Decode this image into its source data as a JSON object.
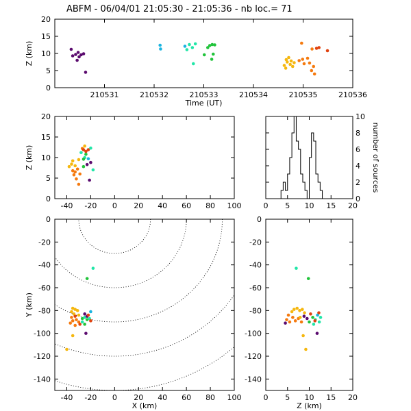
{
  "title": "ABFM - 06/04/01 21:05:30 - 21:05:36 - nb loc.=      71",
  "colors": {
    "purple": "#5a0a6e",
    "cyan": "#1ab4e0",
    "teal": "#22e6a8",
    "green": "#22c43c",
    "yellow": "#f5b70f",
    "orange": "#f57a0f",
    "red": "#e0420f"
  },
  "chart_data": [
    {
      "type": "scatter",
      "panel": "time-height",
      "xlabel": "Time (UT)",
      "ylabel": "Z (km)",
      "xlim": [
        210530,
        210536
      ],
      "ylim": [
        0,
        20
      ],
      "xticks": [
        210531,
        210532,
        210533,
        210534,
        210535,
        210536
      ],
      "yticks": [
        0,
        5,
        10,
        15,
        20
      ],
      "points": [
        {
          "x": 210530.33,
          "y": 11.2,
          "c": "purple"
        },
        {
          "x": 210530.36,
          "y": 9.3,
          "c": "purple"
        },
        {
          "x": 210530.42,
          "y": 9.7,
          "c": "purple"
        },
        {
          "x": 210530.47,
          "y": 10.3,
          "c": "purple"
        },
        {
          "x": 210530.49,
          "y": 9.0,
          "c": "purple"
        },
        {
          "x": 210530.53,
          "y": 9.6,
          "c": "purple"
        },
        {
          "x": 210530.58,
          "y": 9.9,
          "c": "purple"
        },
        {
          "x": 210530.62,
          "y": 4.5,
          "c": "purple"
        },
        {
          "x": 210530.45,
          "y": 8.0,
          "c": "purple"
        },
        {
          "x": 210532.12,
          "y": 12.4,
          "c": "cyan"
        },
        {
          "x": 210532.13,
          "y": 11.3,
          "c": "cyan"
        },
        {
          "x": 210532.62,
          "y": 12.1,
          "c": "cyan"
        },
        {
          "x": 210532.66,
          "y": 11.1,
          "c": "teal"
        },
        {
          "x": 210532.71,
          "y": 12.6,
          "c": "teal"
        },
        {
          "x": 210532.77,
          "y": 11.7,
          "c": "teal"
        },
        {
          "x": 210532.83,
          "y": 12.8,
          "c": "teal"
        },
        {
          "x": 210532.79,
          "y": 7.0,
          "c": "teal"
        },
        {
          "x": 210533.08,
          "y": 11.7,
          "c": "green"
        },
        {
          "x": 210533.12,
          "y": 12.3,
          "c": "green"
        },
        {
          "x": 210533.17,
          "y": 12.6,
          "c": "green"
        },
        {
          "x": 210533.22,
          "y": 12.5,
          "c": "green"
        },
        {
          "x": 210533.01,
          "y": 9.6,
          "c": "green"
        },
        {
          "x": 210533.16,
          "y": 8.3,
          "c": "green"
        },
        {
          "x": 210533.19,
          "y": 9.8,
          "c": "green"
        },
        {
          "x": 210534.62,
          "y": 6.5,
          "c": "yellow"
        },
        {
          "x": 210534.65,
          "y": 5.7,
          "c": "yellow"
        },
        {
          "x": 210534.68,
          "y": 7.5,
          "c": "yellow"
        },
        {
          "x": 210534.71,
          "y": 8.8,
          "c": "yellow"
        },
        {
          "x": 210534.74,
          "y": 6.8,
          "c": "yellow"
        },
        {
          "x": 210534.76,
          "y": 7.8,
          "c": "yellow"
        },
        {
          "x": 210534.79,
          "y": 6.2,
          "c": "yellow"
        },
        {
          "x": 210534.66,
          "y": 8.2,
          "c": "yellow"
        },
        {
          "x": 210534.82,
          "y": 7.3,
          "c": "yellow"
        },
        {
          "x": 210534.92,
          "y": 7.9,
          "c": "orange"
        },
        {
          "x": 210534.97,
          "y": 13.0,
          "c": "orange"
        },
        {
          "x": 210534.99,
          "y": 8.3,
          "c": "orange"
        },
        {
          "x": 210535.02,
          "y": 7.0,
          "c": "orange"
        },
        {
          "x": 210535.09,
          "y": 8.6,
          "c": "orange"
        },
        {
          "x": 210535.13,
          "y": 7.2,
          "c": "orange"
        },
        {
          "x": 210535.17,
          "y": 5.0,
          "c": "orange"
        },
        {
          "x": 210535.21,
          "y": 6.2,
          "c": "orange"
        },
        {
          "x": 210535.23,
          "y": 4.0,
          "c": "orange"
        },
        {
          "x": 210535.18,
          "y": 11.3,
          "c": "orange"
        },
        {
          "x": 210535.27,
          "y": 11.5,
          "c": "red"
        },
        {
          "x": 210535.32,
          "y": 11.7,
          "c": "red"
        },
        {
          "x": 210535.49,
          "y": 10.8,
          "c": "red"
        }
      ]
    },
    {
      "type": "scatter",
      "panel": "x-height",
      "xlabel": "",
      "ylabel": "Z (km)",
      "xlim": [
        -50,
        100
      ],
      "ylim": [
        0,
        20
      ],
      "xticks": [
        -40,
        -20,
        0,
        20,
        40,
        60,
        80,
        100
      ],
      "yticks": [
        0,
        5,
        10,
        15,
        20
      ],
      "points": [
        {
          "x": -35,
          "y": 9.2,
          "c": "yellow"
        },
        {
          "x": -36,
          "y": 8.4,
          "c": "yellow"
        },
        {
          "x": -33,
          "y": 8.0,
          "c": "yellow"
        },
        {
          "x": -30,
          "y": 9.5,
          "c": "yellow"
        },
        {
          "x": -38,
          "y": 7.8,
          "c": "yellow"
        },
        {
          "x": -33,
          "y": 6.5,
          "c": "orange"
        },
        {
          "x": -31,
          "y": 7.2,
          "c": "orange"
        },
        {
          "x": -34,
          "y": 5.8,
          "c": "orange"
        },
        {
          "x": -32,
          "y": 4.8,
          "c": "orange"
        },
        {
          "x": -30,
          "y": 3.5,
          "c": "orange"
        },
        {
          "x": -35,
          "y": 6.8,
          "c": "orange"
        },
        {
          "x": -29,
          "y": 6.0,
          "c": "orange"
        },
        {
          "x": -27,
          "y": 12.2,
          "c": "orange"
        },
        {
          "x": -25,
          "y": 12.8,
          "c": "yellow"
        },
        {
          "x": -24,
          "y": 11.5,
          "c": "red"
        },
        {
          "x": -22,
          "y": 11.9,
          "c": "red"
        },
        {
          "x": -26,
          "y": 11.9,
          "c": "red"
        },
        {
          "x": -28,
          "y": 11.2,
          "c": "teal"
        },
        {
          "x": -24,
          "y": 10.8,
          "c": "green"
        },
        {
          "x": -25,
          "y": 10.0,
          "c": "teal"
        },
        {
          "x": -22,
          "y": 9.7,
          "c": "cyan"
        },
        {
          "x": -20,
          "y": 12.3,
          "c": "teal"
        },
        {
          "x": -26,
          "y": 9.6,
          "c": "green"
        },
        {
          "x": -23,
          "y": 8.3,
          "c": "purple"
        },
        {
          "x": -20,
          "y": 8.8,
          "c": "purple"
        },
        {
          "x": -18,
          "y": 7.0,
          "c": "teal"
        },
        {
          "x": -21,
          "y": 4.5,
          "c": "purple"
        },
        {
          "x": -26,
          "y": 7.8,
          "c": "green"
        }
      ]
    },
    {
      "type": "bar",
      "panel": "altitude-histogram",
      "xlabel": "",
      "ylabel": "number of sources",
      "xlim": [
        0,
        20
      ],
      "ylim": [
        0,
        10
      ],
      "xticks": [
        0,
        5,
        10,
        15,
        20
      ],
      "yticks": [
        0,
        2,
        4,
        6,
        8,
        10
      ],
      "bin_width": 0.5,
      "x": [
        3.5,
        4.0,
        4.5,
        5.0,
        5.5,
        6.0,
        6.5,
        7.0,
        7.5,
        8.0,
        8.5,
        9.0,
        9.5,
        10.0,
        10.5,
        11.0,
        11.5,
        12.0,
        12.5,
        13.0
      ],
      "values": [
        1,
        2,
        1,
        3,
        5,
        8,
        10,
        7,
        6,
        3,
        2,
        1,
        0,
        5,
        8,
        7,
        3,
        2,
        1,
        0
      ]
    },
    {
      "type": "scatter",
      "panel": "plan-view",
      "xlabel": "X (km)",
      "ylabel": "Y (km)",
      "xlim": [
        -50,
        100
      ],
      "ylim": [
        -150,
        0
      ],
      "xticks": [
        -40,
        -20,
        0,
        20,
        40,
        60,
        80,
        100
      ],
      "yticks": [
        -140,
        -120,
        -100,
        -80,
        -60,
        -40,
        -20,
        0
      ],
      "range_rings_km": [
        30,
        60,
        90,
        120,
        150
      ],
      "ring_center": [
        0,
        0
      ],
      "points": [
        {
          "x": -18,
          "y": -43,
          "c": "teal"
        },
        {
          "x": -23,
          "y": -52,
          "c": "green"
        },
        {
          "x": -35,
          "y": -78,
          "c": "yellow"
        },
        {
          "x": -33,
          "y": -79,
          "c": "yellow"
        },
        {
          "x": -31,
          "y": -80,
          "c": "yellow"
        },
        {
          "x": -36,
          "y": -81,
          "c": "yellow"
        },
        {
          "x": -34,
          "y": -83,
          "c": "yellow"
        },
        {
          "x": -30,
          "y": -84,
          "c": "yellow"
        },
        {
          "x": -20,
          "y": -81,
          "c": "cyan"
        },
        {
          "x": -36,
          "y": -86,
          "c": "orange"
        },
        {
          "x": -35,
          "y": -89,
          "c": "orange"
        },
        {
          "x": -32,
          "y": -88,
          "c": "orange"
        },
        {
          "x": -37,
          "y": -91,
          "c": "orange"
        },
        {
          "x": -33,
          "y": -93,
          "c": "orange"
        },
        {
          "x": -30,
          "y": -90,
          "c": "orange"
        },
        {
          "x": -27,
          "y": -87,
          "c": "green"
        },
        {
          "x": -25,
          "y": -86,
          "c": "teal"
        },
        {
          "x": -27,
          "y": -90,
          "c": "teal"
        },
        {
          "x": -25,
          "y": -92,
          "c": "green"
        },
        {
          "x": -23,
          "y": -88,
          "c": "green"
        },
        {
          "x": -21,
          "y": -87,
          "c": "teal"
        },
        {
          "x": -23,
          "y": -85,
          "c": "purple"
        },
        {
          "x": -20,
          "y": -89,
          "c": "red"
        },
        {
          "x": -22,
          "y": -84,
          "c": "red"
        },
        {
          "x": -25,
          "y": -83,
          "c": "purple"
        },
        {
          "x": -33,
          "y": -85,
          "c": "red"
        },
        {
          "x": -29,
          "y": -92,
          "c": "red"
        },
        {
          "x": -24,
          "y": -100,
          "c": "purple"
        },
        {
          "x": -35,
          "y": -102,
          "c": "yellow"
        },
        {
          "x": -40,
          "y": -114,
          "c": "yellow"
        }
      ]
    },
    {
      "type": "scatter",
      "panel": "z-y",
      "xlabel": "Z (km)",
      "ylabel": "",
      "xlim": [
        0,
        20
      ],
      "ylim": [
        -150,
        0
      ],
      "xticks": [
        0,
        5,
        10,
        15,
        20
      ],
      "yticks": [
        -140,
        -120,
        -100,
        -80,
        -60,
        -40,
        -20,
        0
      ],
      "points": [
        {
          "x": 7.0,
          "y": -43,
          "c": "teal"
        },
        {
          "x": 9.8,
          "y": -52,
          "c": "green"
        },
        {
          "x": 6.5,
          "y": -79,
          "c": "yellow"
        },
        {
          "x": 7.2,
          "y": -78,
          "c": "yellow"
        },
        {
          "x": 7.8,
          "y": -80,
          "c": "yellow"
        },
        {
          "x": 8.4,
          "y": -79,
          "c": "yellow"
        },
        {
          "x": 6.0,
          "y": -81,
          "c": "yellow"
        },
        {
          "x": 8.9,
          "y": -82,
          "c": "yellow"
        },
        {
          "x": 5.2,
          "y": -84,
          "c": "orange"
        },
        {
          "x": 4.8,
          "y": -88,
          "c": "orange"
        },
        {
          "x": 5.5,
          "y": -90,
          "c": "orange"
        },
        {
          "x": 6.2,
          "y": -86,
          "c": "orange"
        },
        {
          "x": 6.8,
          "y": -89,
          "c": "orange"
        },
        {
          "x": 7.5,
          "y": -87,
          "c": "orange"
        },
        {
          "x": 8.2,
          "y": -90,
          "c": "orange"
        },
        {
          "x": 7.9,
          "y": -86,
          "c": "yellow"
        },
        {
          "x": 9.5,
          "y": -87,
          "c": "purple"
        },
        {
          "x": 10.0,
          "y": -90,
          "c": "green"
        },
        {
          "x": 10.8,
          "y": -86,
          "c": "green"
        },
        {
          "x": 11.4,
          "y": -88,
          "c": "teal"
        },
        {
          "x": 11.9,
          "y": -84,
          "c": "cyan"
        },
        {
          "x": 12.3,
          "y": -90,
          "c": "teal"
        },
        {
          "x": 12.6,
          "y": -86,
          "c": "teal"
        },
        {
          "x": 11.0,
          "y": -92,
          "c": "teal"
        },
        {
          "x": 12.2,
          "y": -82,
          "c": "red"
        },
        {
          "x": 10.3,
          "y": -83,
          "c": "red"
        },
        {
          "x": 11.3,
          "y": -89,
          "c": "red"
        },
        {
          "x": 8.8,
          "y": -85,
          "c": "purple"
        },
        {
          "x": 4.5,
          "y": -91,
          "c": "purple"
        },
        {
          "x": 11.8,
          "y": -100,
          "c": "purple"
        },
        {
          "x": 8.6,
          "y": -102,
          "c": "yellow"
        },
        {
          "x": 9.2,
          "y": -114,
          "c": "yellow"
        }
      ]
    }
  ]
}
